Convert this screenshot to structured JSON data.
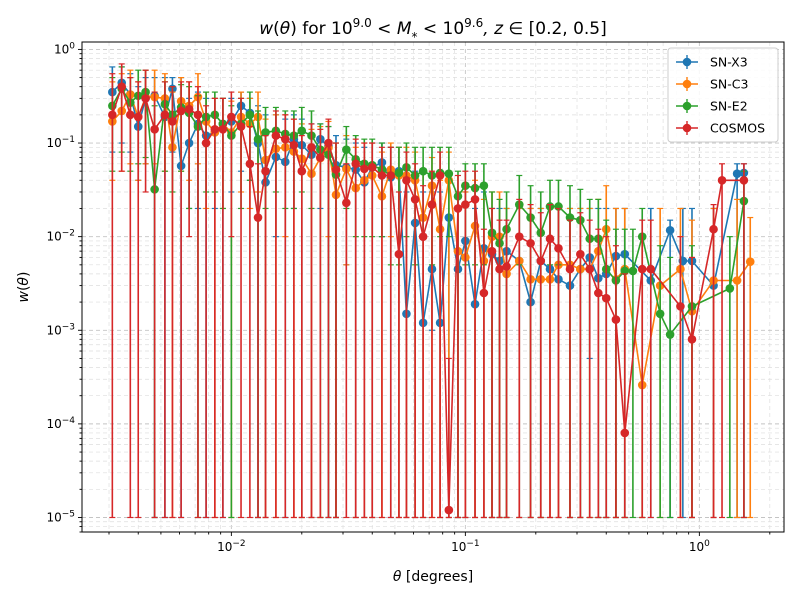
{
  "chart_data": {
    "type": "line",
    "title_parts": {
      "w": "w",
      "theta": "θ",
      "for": " for 10",
      "exp1": "9.0",
      "lt1": " < ",
      "M": "M",
      "star": "*",
      "lt2": " < 10",
      "exp2": "9.6",
      "z": ", z",
      "range": " ∈ [0.2, 0.5]"
    },
    "xlabel_parts": {
      "theta": "θ",
      "rest": " [degrees]"
    },
    "ylabel_parts": {
      "w": "w",
      "theta": "θ"
    },
    "xscale": "log",
    "yscale": "log",
    "xlim": [
      0.0023,
      2.3
    ],
    "ylim": [
      7e-06,
      1.2
    ],
    "xticks": [
      {
        "value": 0.01,
        "base": "10",
        "exp": "−2"
      },
      {
        "value": 0.1,
        "base": "10",
        "exp": "−1"
      },
      {
        "value": 1,
        "base": "10",
        "exp": "0"
      }
    ],
    "yticks": [
      {
        "value": 1e-05,
        "base": "10",
        "exp": "−5"
      },
      {
        "value": 0.0001,
        "base": "10",
        "exp": "−4"
      },
      {
        "value": 0.001,
        "base": "10",
        "exp": "−3"
      },
      {
        "value": 0.01,
        "base": "10",
        "exp": "−2"
      },
      {
        "value": 0.1,
        "base": "10",
        "exp": "−1"
      },
      {
        "value": 1,
        "base": "10",
        "exp": "0"
      }
    ],
    "grid": true,
    "legend_position": "top-right",
    "series": [
      {
        "name": "SN-X3",
        "color": "#1f77b4",
        "x": [
          0.0031,
          0.0034,
          0.0037,
          0.004,
          0.0043,
          0.0047,
          0.0052,
          0.0056,
          0.0061,
          0.0066,
          0.0072,
          0.0078,
          0.0085,
          0.0092,
          0.01,
          0.011,
          0.012,
          0.013,
          0.014,
          0.0155,
          0.017,
          0.0185,
          0.02,
          0.022,
          0.024,
          0.026,
          0.028,
          0.031,
          0.034,
          0.037,
          0.04,
          0.044,
          0.048,
          0.052,
          0.056,
          0.061,
          0.066,
          0.072,
          0.078,
          0.085,
          0.093,
          0.1,
          0.11,
          0.12,
          0.13,
          0.14,
          0.15,
          0.17,
          0.19,
          0.21,
          0.23,
          0.25,
          0.28,
          0.31,
          0.34,
          0.37,
          0.4,
          0.44,
          0.48,
          0.62,
          0.75,
          0.85,
          0.93,
          1.15,
          1.45,
          1.55
        ],
        "y": [
          0.35,
          0.44,
          0.33,
          0.15,
          0.3,
          0.32,
          0.19,
          0.38,
          0.057,
          0.1,
          0.16,
          0.12,
          0.13,
          0.16,
          0.17,
          0.25,
          0.21,
          0.1,
          0.038,
          0.071,
          0.063,
          0.11,
          0.095,
          0.075,
          0.11,
          0.092,
          0.058,
          0.055,
          0.052,
          0.038,
          0.055,
          0.062,
          0.043,
          0.05,
          0.0015,
          0.014,
          0.0012,
          0.0045,
          0.0012,
          0.016,
          0.0045,
          0.009,
          0.0019,
          0.0075,
          0.0065,
          0.0055,
          0.007,
          0.0055,
          0.002,
          0.0055,
          0.0045,
          0.0035,
          0.003,
          0.0045,
          0.006,
          0.0036,
          0.004,
          0.0062,
          0.0065,
          0.0034,
          0.0117,
          0.0055,
          0.0055,
          0.003,
          0.047,
          0.048
        ],
        "lo": [
          0.08,
          0.1,
          0.08,
          0.04,
          0.06,
          1e-05,
          1e-05,
          0.08,
          1e-05,
          0.02,
          0.02,
          1e-05,
          0.02,
          1e-05,
          0.03,
          0.05,
          0.04,
          1e-05,
          1e-05,
          0.01,
          1e-05,
          0.02,
          1e-05,
          1e-05,
          0.02,
          1e-05,
          1e-05,
          0.005,
          1e-05,
          1e-05,
          1e-05,
          0.01,
          1e-05,
          1e-05,
          1e-05,
          1e-05,
          1e-05,
          0.001,
          1e-05,
          1e-05,
          1e-05,
          1e-05,
          1e-05,
          1e-05,
          1e-05,
          1e-05,
          1e-05,
          1e-05,
          1e-05,
          1e-05,
          1e-05,
          1e-05,
          1e-05,
          1e-05,
          0.0005,
          1e-05,
          1e-05,
          1e-05,
          1e-05,
          1e-05,
          1e-05,
          1e-05,
          1e-05,
          1e-05,
          1e-05,
          1e-05
        ],
        "hi": [
          0.65,
          0.65,
          0.55,
          0.4,
          0.5,
          0.5,
          0.5,
          0.5,
          0.5,
          0.3,
          0.35,
          0.3,
          0.3,
          0.3,
          0.3,
          0.35,
          0.3,
          0.25,
          0.2,
          0.2,
          0.18,
          0.2,
          0.18,
          0.16,
          0.16,
          0.15,
          0.12,
          0.11,
          0.1,
          0.09,
          0.1,
          0.1,
          0.09,
          0.09,
          0.03,
          0.05,
          0.03,
          0.03,
          0.03,
          0.05,
          0.03,
          0.03,
          0.02,
          0.03,
          0.02,
          0.02,
          0.02,
          0.02,
          0.02,
          0.02,
          0.02,
          0.02,
          0.02,
          0.02,
          0.02,
          0.02,
          0.02,
          0.02,
          0.02,
          0.02,
          0.015,
          0.02,
          0.02,
          0.02,
          0.06,
          0.06
        ]
      },
      {
        "name": "SN-C3",
        "color": "#ff7f0e",
        "x": [
          0.0031,
          0.0034,
          0.0037,
          0.004,
          0.0043,
          0.0047,
          0.0052,
          0.0056,
          0.0061,
          0.0066,
          0.0072,
          0.0078,
          0.0085,
          0.0092,
          0.01,
          0.011,
          0.012,
          0.013,
          0.014,
          0.0155,
          0.017,
          0.0185,
          0.02,
          0.022,
          0.024,
          0.026,
          0.028,
          0.031,
          0.034,
          0.037,
          0.04,
          0.044,
          0.048,
          0.052,
          0.056,
          0.061,
          0.066,
          0.072,
          0.078,
          0.085,
          0.093,
          0.1,
          0.11,
          0.12,
          0.13,
          0.14,
          0.15,
          0.17,
          0.19,
          0.21,
          0.23,
          0.25,
          0.28,
          0.31,
          0.34,
          0.37,
          0.4,
          0.44,
          0.48,
          0.57,
          0.68,
          0.83,
          0.93,
          1.15,
          1.45,
          1.65
        ],
        "y": [
          0.17,
          0.22,
          0.33,
          0.19,
          0.31,
          0.31,
          0.3,
          0.09,
          0.28,
          0.25,
          0.31,
          0.17,
          0.13,
          0.16,
          0.13,
          0.19,
          0.16,
          0.19,
          0.066,
          0.087,
          0.09,
          0.081,
          0.068,
          0.047,
          0.069,
          0.089,
          0.028,
          0.053,
          0.033,
          0.04,
          0.045,
          0.027,
          0.052,
          0.045,
          0.045,
          0.04,
          0.016,
          0.035,
          0.012,
          0.04,
          0.007,
          0.006,
          0.013,
          0.0055,
          0.01,
          0.01,
          0.004,
          0.0055,
          0.0035,
          0.0035,
          0.0035,
          0.005,
          0.005,
          0.0045,
          0.0045,
          0.007,
          0.012,
          0.0035,
          0.0045,
          0.00026,
          0.003,
          0.0045,
          0.0016,
          0.0034,
          0.0034,
          0.0054
        ],
        "lo": [
          0.04,
          0.05,
          0.06,
          0.04,
          0.06,
          0.06,
          0.05,
          1e-05,
          0.05,
          0.04,
          0.06,
          0.02,
          1e-05,
          0.02,
          1e-05,
          0.03,
          0.02,
          0.03,
          1e-05,
          1e-05,
          0.01,
          1e-05,
          1e-05,
          1e-05,
          1e-05,
          0.01,
          1e-05,
          0.005,
          1e-05,
          1e-05,
          1e-05,
          1e-05,
          0.01,
          1e-05,
          1e-05,
          1e-05,
          1e-05,
          1e-05,
          1e-05,
          1e-05,
          1e-05,
          1e-05,
          1e-05,
          1e-05,
          1e-05,
          1e-05,
          1e-05,
          1e-05,
          1e-05,
          1e-05,
          1e-05,
          1e-05,
          1e-05,
          1e-05,
          1e-05,
          1e-05,
          1e-05,
          1e-05,
          1e-05,
          1e-05,
          1e-05,
          1e-05,
          1e-05,
          1e-05,
          1e-05,
          1e-05
        ],
        "hi": [
          0.45,
          0.55,
          0.6,
          0.45,
          0.6,
          0.6,
          0.55,
          0.35,
          0.5,
          0.45,
          0.55,
          0.35,
          0.3,
          0.3,
          0.28,
          0.35,
          0.3,
          0.35,
          0.18,
          0.2,
          0.2,
          0.18,
          0.16,
          0.14,
          0.15,
          0.17,
          0.1,
          0.12,
          0.09,
          0.1,
          0.1,
          0.08,
          0.1,
          0.09,
          0.09,
          0.08,
          0.05,
          0.07,
          0.04,
          0.08,
          0.03,
          0.03,
          0.04,
          0.025,
          0.03,
          0.03,
          0.02,
          0.02,
          0.02,
          0.02,
          0.02,
          0.02,
          0.02,
          0.02,
          0.02,
          0.025,
          0.035,
          0.02,
          0.02,
          0.01,
          0.02,
          0.02,
          0.015,
          0.02,
          0.025,
          0.016
        ]
      },
      {
        "name": "SN-E2",
        "color": "#2ca02c",
        "x": [
          0.0031,
          0.0034,
          0.0037,
          0.004,
          0.0043,
          0.0047,
          0.0052,
          0.0056,
          0.0061,
          0.0066,
          0.0072,
          0.0078,
          0.0085,
          0.0092,
          0.01,
          0.011,
          0.012,
          0.013,
          0.014,
          0.0155,
          0.017,
          0.0185,
          0.02,
          0.022,
          0.024,
          0.026,
          0.028,
          0.031,
          0.034,
          0.037,
          0.04,
          0.044,
          0.048,
          0.052,
          0.056,
          0.061,
          0.066,
          0.072,
          0.078,
          0.085,
          0.093,
          0.1,
          0.11,
          0.12,
          0.13,
          0.14,
          0.15,
          0.17,
          0.19,
          0.21,
          0.23,
          0.25,
          0.28,
          0.31,
          0.34,
          0.37,
          0.4,
          0.44,
          0.48,
          0.52,
          0.57,
          0.68,
          0.75,
          0.93,
          1.35,
          1.55
        ],
        "y": [
          0.25,
          0.38,
          0.27,
          0.32,
          0.35,
          0.032,
          0.26,
          0.2,
          0.24,
          0.21,
          0.15,
          0.19,
          0.2,
          0.16,
          0.12,
          0.16,
          0.2,
          0.11,
          0.13,
          0.135,
          0.125,
          0.12,
          0.135,
          0.12,
          0.085,
          0.075,
          0.046,
          0.085,
          0.067,
          0.06,
          0.058,
          0.052,
          0.045,
          0.048,
          0.055,
          0.045,
          0.05,
          0.045,
          0.048,
          0.047,
          0.027,
          0.035,
          0.033,
          0.035,
          0.011,
          0.0085,
          0.012,
          0.022,
          0.016,
          0.011,
          0.021,
          0.021,
          0.016,
          0.015,
          0.0095,
          0.0095,
          0.0045,
          0.0034,
          0.0043,
          0.0043,
          0.01,
          0.0015,
          0.0009,
          0.0018,
          0.0028,
          0.024
        ],
        "lo": [
          0.05,
          0.08,
          0.05,
          0.06,
          0.07,
          1e-05,
          0.05,
          0.03,
          0.05,
          0.02,
          1e-05,
          0.03,
          0.03,
          0.02,
          1e-05,
          0.02,
          0.04,
          1e-05,
          0.02,
          0.03,
          0.02,
          0.02,
          0.03,
          0.02,
          1e-05,
          1e-05,
          1e-05,
          0.02,
          0.01,
          0.01,
          0.01,
          0.01,
          0.005,
          0.005,
          0.01,
          0.005,
          0.01,
          0.005,
          0.01,
          0.01,
          1e-05,
          0.005,
          0.005,
          0.005,
          1e-05,
          1e-05,
          1e-05,
          0.005,
          1e-05,
          1e-05,
          0.005,
          0.005,
          1e-05,
          1e-05,
          1e-05,
          1e-05,
          1e-05,
          1e-05,
          1e-05,
          1e-05,
          1e-05,
          1e-05,
          1e-05,
          1e-05,
          1e-05,
          1e-05
        ],
        "hi": [
          0.5,
          0.65,
          0.5,
          0.6,
          0.6,
          0.25,
          0.45,
          0.4,
          0.42,
          0.4,
          0.32,
          0.35,
          0.35,
          0.3,
          0.25,
          0.3,
          0.35,
          0.22,
          0.24,
          0.24,
          0.22,
          0.22,
          0.24,
          0.22,
          0.16,
          0.15,
          0.1,
          0.15,
          0.12,
          0.11,
          0.11,
          0.1,
          0.09,
          0.09,
          0.1,
          0.09,
          0.09,
          0.09,
          0.09,
          0.09,
          0.05,
          0.06,
          0.06,
          0.06,
          0.03,
          0.025,
          0.03,
          0.045,
          0.035,
          0.03,
          0.04,
          0.04,
          0.035,
          0.032,
          0.025,
          0.025,
          0.015,
          0.012,
          0.012,
          0.012,
          0.02,
          0.008,
          0.006,
          0.008,
          0.01,
          0.05
        ]
      },
      {
        "name": "COSMOS",
        "color": "#d62728",
        "x": [
          0.0031,
          0.0034,
          0.0037,
          0.004,
          0.0043,
          0.0047,
          0.0052,
          0.0056,
          0.0061,
          0.0066,
          0.0072,
          0.0078,
          0.0085,
          0.0092,
          0.01,
          0.011,
          0.012,
          0.013,
          0.014,
          0.0155,
          0.017,
          0.0185,
          0.02,
          0.022,
          0.024,
          0.026,
          0.028,
          0.031,
          0.034,
          0.037,
          0.04,
          0.044,
          0.048,
          0.052,
          0.056,
          0.061,
          0.066,
          0.072,
          0.078,
          0.085,
          0.093,
          0.1,
          0.11,
          0.12,
          0.13,
          0.14,
          0.15,
          0.17,
          0.19,
          0.21,
          0.23,
          0.25,
          0.28,
          0.31,
          0.34,
          0.37,
          0.4,
          0.44,
          0.48,
          0.57,
          0.62,
          0.83,
          0.93,
          1.15,
          1.25,
          1.55
        ],
        "y": [
          0.2,
          0.4,
          0.2,
          0.19,
          0.3,
          0.14,
          0.2,
          0.17,
          0.22,
          0.23,
          0.2,
          0.1,
          0.14,
          0.14,
          0.19,
          0.15,
          0.06,
          0.016,
          0.05,
          0.12,
          0.11,
          0.095,
          0.05,
          0.09,
          0.07,
          0.1,
          0.052,
          0.023,
          0.06,
          0.053,
          0.055,
          0.045,
          0.045,
          0.0065,
          0.04,
          0.025,
          0.01,
          0.022,
          0.045,
          1.2e-05,
          0.02,
          0.022,
          0.025,
          0.0025,
          0.007,
          0.0045,
          0.0048,
          0.01,
          0.0085,
          0.0055,
          0.0095,
          0.0075,
          0.0045,
          0.0065,
          0.0045,
          0.0025,
          0.0022,
          0.0013,
          8e-05,
          0.0045,
          0.0045,
          0.0018,
          0.0008,
          0.012,
          0.04,
          0.04
        ],
        "lo": [
          1e-05,
          0.05,
          1e-05,
          1e-05,
          0.03,
          1e-05,
          1e-05,
          1e-05,
          1e-05,
          0.01,
          1e-05,
          1e-05,
          1e-05,
          1e-05,
          0.01,
          1e-05,
          1e-05,
          1e-05,
          1e-05,
          1e-05,
          1e-05,
          1e-05,
          1e-05,
          1e-05,
          1e-05,
          1e-05,
          1e-05,
          1e-05,
          1e-05,
          1e-05,
          1e-05,
          1e-05,
          1e-05,
          1e-05,
          1e-05,
          1e-05,
          1e-05,
          1e-05,
          1e-05,
          1e-05,
          1e-05,
          1e-05,
          1e-05,
          1e-05,
          1e-05,
          1e-05,
          1e-05,
          1e-05,
          1e-05,
          1e-05,
          1e-05,
          1e-05,
          1e-05,
          1e-05,
          1e-05,
          1e-05,
          1e-05,
          1e-05,
          1e-05,
          1e-05,
          1e-05,
          1e-05,
          1e-05,
          1e-05,
          1e-05,
          1e-05
        ],
        "hi": [
          0.55,
          0.7,
          0.5,
          0.45,
          0.6,
          0.35,
          0.45,
          0.4,
          0.45,
          0.45,
          0.4,
          0.25,
          0.3,
          0.3,
          0.35,
          0.3,
          0.15,
          0.06,
          0.12,
          0.22,
          0.2,
          0.18,
          0.12,
          0.16,
          0.14,
          0.18,
          0.1,
          0.06,
          0.11,
          0.1,
          0.1,
          0.09,
          0.09,
          0.03,
          0.08,
          0.06,
          0.035,
          0.05,
          0.08,
          0.0005,
          0.045,
          0.05,
          0.05,
          0.012,
          0.02,
          0.015,
          0.015,
          0.025,
          0.022,
          0.018,
          0.022,
          0.02,
          0.015,
          0.018,
          0.015,
          0.012,
          0.01,
          0.008,
          0.004,
          0.015,
          0.015,
          0.01,
          0.006,
          0.022,
          0.06,
          0.06
        ]
      }
    ]
  }
}
